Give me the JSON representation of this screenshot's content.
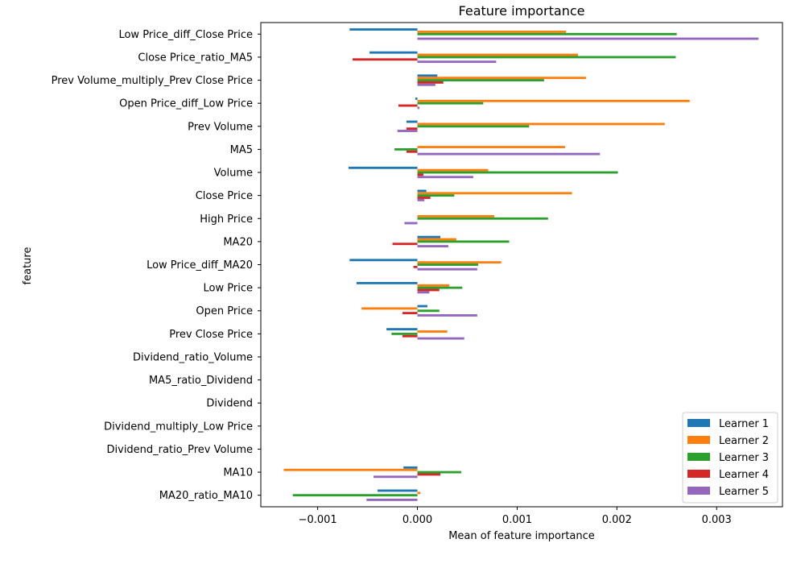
{
  "chart_data": {
    "type": "bar",
    "orientation": "horizontal",
    "title": "Feature importance",
    "xlabel": "Mean of feature importance",
    "ylabel": "feature",
    "xlim": [
      -0.00157,
      0.00366
    ],
    "xticks": [
      {
        "value": -0.001,
        "label": "−0.001"
      },
      {
        "value": 0.0,
        "label": "0.000"
      },
      {
        "value": 0.001,
        "label": "0.001"
      },
      {
        "value": 0.002,
        "label": "0.002"
      },
      {
        "value": 0.003,
        "label": "0.003"
      }
    ],
    "grid": false,
    "legend_position": "bottom-right",
    "categories": [
      "Low Price_diff_Close Price",
      "Close Price_ratio_MA5",
      "Prev Volume_multiply_Prev Close Price",
      "Open Price_diff_Low Price",
      "Prev Volume",
      "MA5",
      "Volume",
      "Close Price",
      "High Price",
      "MA20",
      "Low Price_diff_MA20",
      "Low Price",
      "Open Price",
      "Prev Close Price",
      "Dividend_ratio_Volume",
      "MA5_ratio_Dividend",
      "Dividend",
      "Dividend_multiply_Low Price",
      "Dividend_ratio_Prev Volume",
      "MA10",
      "MA20_ratio_MA10"
    ],
    "series": [
      {
        "name": "Learner 1",
        "color": "#1f77b4",
        "values": [
          -0.00068,
          -0.00048,
          0.0002,
          -2e-05,
          -0.00011,
          0.0,
          -0.00069,
          9e-05,
          0.0,
          0.00023,
          -0.00068,
          -0.00061,
          0.0001,
          -0.00031,
          0.0,
          0.0,
          0.0,
          0.0,
          0.0,
          -0.00014,
          -0.0004
        ]
      },
      {
        "name": "Learner 2",
        "color": "#ff7f0e",
        "values": [
          0.00149,
          0.00161,
          0.00169,
          0.00273,
          0.00248,
          0.00148,
          0.00071,
          0.00155,
          0.00077,
          0.00039,
          0.00084,
          0.00032,
          -0.00056,
          0.0003,
          0.0,
          0.0,
          0.0,
          0.0,
          0.0,
          -0.00134,
          3e-05
        ]
      },
      {
        "name": "Learner 3",
        "color": "#2ca02c",
        "values": [
          0.0026,
          0.00259,
          0.00127,
          0.00066,
          0.00112,
          -0.00023,
          0.00201,
          0.00037,
          0.00131,
          0.00092,
          0.00061,
          0.00045,
          0.00022,
          -0.00026,
          0.0,
          0.0,
          0.0,
          0.0,
          0.0,
          0.00044,
          -0.00125
        ]
      },
      {
        "name": "Learner 4",
        "color": "#d62728",
        "values": [
          0.0,
          -0.00065,
          0.00026,
          -0.00019,
          -0.00011,
          -0.00011,
          6e-05,
          0.00013,
          0.0,
          -0.00025,
          -4e-05,
          0.00022,
          -0.00015,
          -0.00015,
          0.0,
          0.0,
          0.0,
          0.0,
          0.0,
          0.00023,
          0.0
        ]
      },
      {
        "name": "Learner 5",
        "color": "#9467bd",
        "values": [
          0.00342,
          0.00079,
          0.00018,
          2e-05,
          -0.0002,
          0.00183,
          0.00056,
          7e-05,
          -0.00013,
          0.00031,
          0.0006,
          0.00012,
          0.0006,
          0.00047,
          0.0,
          0.0,
          0.0,
          0.0,
          0.0,
          -0.00044,
          -0.00051
        ]
      }
    ]
  }
}
